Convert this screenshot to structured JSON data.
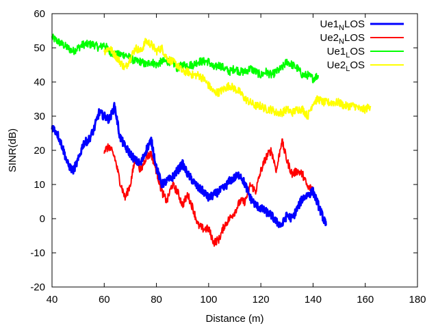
{
  "chart_data": {
    "type": "line",
    "title": "",
    "xlabel": "Distance (m)",
    "ylabel": "SINR(dB)",
    "xlim": [
      40,
      180
    ],
    "ylim": [
      -20,
      60
    ],
    "xticks": [
      40,
      60,
      80,
      100,
      120,
      140,
      160,
      180
    ],
    "yticks": [
      -20,
      -10,
      0,
      10,
      20,
      30,
      40,
      50,
      60
    ],
    "grid": false,
    "legend_position": "top-right",
    "series": [
      {
        "name": "Ue1NLOS",
        "legend_main": "Ue1",
        "legend_sub": "N",
        "legend_tail": "LOS",
        "color": "#0000ff",
        "width": 3,
        "x": [
          40,
          42,
          44,
          46,
          48,
          50,
          52,
          54,
          56,
          58,
          60,
          62,
          64,
          66,
          68,
          70,
          72,
          74,
          76,
          78,
          80,
          82,
          84,
          86,
          88,
          90,
          92,
          94,
          96,
          98,
          100,
          102,
          104,
          106,
          108,
          110,
          112,
          114,
          116,
          118,
          120,
          122,
          124,
          126,
          128,
          130,
          132,
          134,
          136,
          138,
          140,
          142,
          144,
          145
        ],
        "y": [
          27,
          25,
          21,
          16,
          14,
          17,
          22,
          23,
          26,
          31,
          30,
          29,
          33,
          24,
          21,
          19,
          17,
          16,
          20,
          23,
          15,
          10,
          11,
          12,
          14,
          16,
          13,
          11,
          9,
          8,
          6,
          7,
          8,
          9,
          11,
          12,
          13,
          10,
          6,
          4,
          3,
          2,
          1,
          -1,
          -2,
          1,
          0,
          3,
          6,
          7,
          8,
          4,
          0,
          -2
        ]
      },
      {
        "name": "Ue2NLOS",
        "legend_main": "Ue2",
        "legend_sub": "N",
        "legend_tail": "LOS",
        "color": "#ff0000",
        "width": 2,
        "x": [
          60,
          62,
          64,
          66,
          68,
          70,
          72,
          74,
          76,
          78,
          80,
          82,
          84,
          86,
          88,
          90,
          92,
          94,
          96,
          98,
          100,
          102,
          104,
          106,
          108,
          110,
          112,
          114,
          116,
          118,
          120,
          122,
          124,
          126,
          128,
          130,
          132,
          134,
          136,
          138,
          140
        ],
        "y": [
          20,
          21,
          18,
          11,
          6,
          10,
          18,
          14,
          18,
          19,
          14,
          8,
          5,
          10,
          8,
          4,
          7,
          3,
          -2,
          -3,
          -3,
          -7,
          -6,
          -2,
          0,
          2,
          5,
          5,
          10,
          8,
          14,
          18,
          20,
          14,
          23,
          17,
          13,
          14,
          13,
          9,
          9
        ]
      },
      {
        "name": "Ue1LOS",
        "legend_main": "Ue1",
        "legend_sub": "L",
        "legend_tail": "OS",
        "color": "#00ff00",
        "width": 2,
        "x": [
          40,
          42,
          44,
          46,
          48,
          50,
          52,
          54,
          56,
          58,
          60,
          62,
          64,
          66,
          68,
          70,
          72,
          74,
          76,
          78,
          80,
          82,
          84,
          86,
          88,
          90,
          92,
          94,
          96,
          98,
          100,
          102,
          104,
          106,
          108,
          110,
          112,
          114,
          116,
          118,
          120,
          122,
          124,
          126,
          128,
          130,
          132,
          134,
          136,
          138,
          140,
          142
        ],
        "y": [
          53,
          52,
          51,
          50,
          49,
          50,
          51,
          51,
          51,
          50,
          51,
          49,
          48,
          48,
          48,
          47,
          46,
          46,
          45,
          46,
          45,
          46,
          46,
          46,
          44,
          45,
          45,
          45,
          46,
          46,
          46,
          44,
          45,
          44,
          43,
          44,
          43,
          43,
          44,
          43,
          42,
          43,
          42,
          43,
          44,
          46,
          45,
          44,
          42,
          42,
          41,
          42
        ]
      },
      {
        "name": "Ue2LOS",
        "legend_main": "Ue2",
        "legend_sub": "L",
        "legend_tail": "OS",
        "color": "#ffff00",
        "width": 2,
        "x": [
          60,
          62,
          64,
          66,
          68,
          70,
          72,
          74,
          76,
          78,
          80,
          82,
          84,
          86,
          88,
          90,
          92,
          94,
          96,
          98,
          100,
          102,
          104,
          106,
          108,
          110,
          112,
          114,
          116,
          118,
          120,
          122,
          124,
          126,
          128,
          130,
          132,
          134,
          136,
          138,
          140,
          142,
          144,
          146,
          148,
          150,
          152,
          154,
          156,
          158,
          160,
          162
        ],
        "y": [
          49,
          50,
          48,
          46,
          44,
          47,
          50,
          49,
          52,
          51,
          49,
          50,
          47,
          46,
          45,
          43,
          43,
          42,
          42,
          41,
          39,
          37,
          37,
          38,
          39,
          38,
          37,
          35,
          34,
          33,
          33,
          32,
          32,
          31,
          31,
          32,
          31,
          32,
          32,
          30,
          34,
          35,
          34,
          34,
          34,
          34,
          33,
          33,
          33,
          32,
          32,
          33
        ]
      }
    ]
  }
}
